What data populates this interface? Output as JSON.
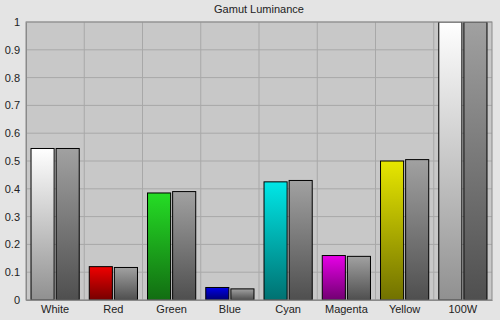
{
  "chart_data": {
    "type": "bar",
    "title": "Gamut Luminance",
    "categories": [
      "White",
      "Red",
      "Green",
      "Blue",
      "Cyan",
      "Magenta",
      "Yellow",
      "100W"
    ],
    "series": [
      {
        "colors": [
          "#ffffff",
          "#d00000",
          "#20c020",
          "#0000c8",
          "#00c8c8",
          "#c800c8",
          "#c8c800",
          "#ffffff"
        ],
        "values": [
          0.545,
          0.12,
          0.385,
          0.045,
          0.425,
          0.16,
          0.5,
          1.0
        ]
      },
      {
        "color": "#8c8c8c",
        "values": [
          0.545,
          0.117,
          0.39,
          0.04,
          0.43,
          0.157,
          0.505,
          1.0
        ]
      }
    ],
    "ylim": [
      0,
      1
    ],
    "yticks": [
      0,
      0.1,
      0.2,
      0.3,
      0.4,
      0.5,
      0.6,
      0.7,
      0.8,
      0.9,
      1
    ],
    "grid": true
  }
}
